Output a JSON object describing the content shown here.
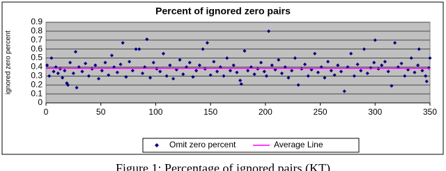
{
  "chart_data": {
    "type": "scatter",
    "title": "Percent of ignored zero pairs",
    "y_label": "ignored zero percent",
    "caption": "Figure 1: Percentage of ignored pairs (KT)",
    "xlim": [
      0,
      350
    ],
    "xticks": [
      0,
      50,
      100,
      150,
      200,
      250,
      300,
      350
    ],
    "ylim": [
      0,
      0.9
    ],
    "yticks": [
      0,
      0.1,
      0.2,
      0.3,
      0.4,
      0.5,
      0.6,
      0.7,
      0.8,
      0.9
    ],
    "grid": true,
    "legend": "bottom",
    "plot_background": "#c0c0c0",
    "series": [
      {
        "name": "Omit zero percent",
        "mode": "markers",
        "color": "#000080",
        "x": [
          1,
          3,
          5,
          7,
          9,
          11,
          13,
          15,
          17,
          19,
          20,
          22,
          25,
          27,
          28,
          30,
          33,
          36,
          39,
          42,
          45,
          48,
          51,
          54,
          57,
          60,
          62,
          65,
          68,
          70,
          73,
          76,
          79,
          82,
          85,
          88,
          90,
          92,
          95,
          98,
          101,
          104,
          107,
          110,
          113,
          116,
          119,
          122,
          125,
          128,
          131,
          134,
          137,
          140,
          143,
          145,
          147,
          150,
          153,
          156,
          159,
          162,
          165,
          168,
          171,
          174,
          177,
          178,
          181,
          184,
          187,
          190,
          193,
          196,
          199,
          201,
          203,
          206,
          209,
          212,
          215,
          218,
          221,
          224,
          227,
          230,
          233,
          236,
          239,
          242,
          245,
          248,
          251,
          254,
          257,
          260,
          263,
          266,
          269,
          272,
          275,
          278,
          281,
          284,
          287,
          290,
          293,
          296,
          299,
          300,
          303,
          306,
          309,
          312,
          315,
          318,
          321,
          324,
          327,
          330,
          333,
          336,
          339,
          340,
          343,
          346,
          347,
          349,
          350
        ],
        "values": [
          0.42,
          0.3,
          0.5,
          0.35,
          0.4,
          0.33,
          0.38,
          0.28,
          0.36,
          0.22,
          0.2,
          0.45,
          0.33,
          0.57,
          0.17,
          0.4,
          0.35,
          0.44,
          0.3,
          0.38,
          0.42,
          0.27,
          0.36,
          0.45,
          0.31,
          0.53,
          0.4,
          0.34,
          0.43,
          0.67,
          0.29,
          0.46,
          0.36,
          0.6,
          0.6,
          0.33,
          0.4,
          0.71,
          0.28,
          0.45,
          0.38,
          0.35,
          0.55,
          0.3,
          0.42,
          0.27,
          0.37,
          0.48,
          0.32,
          0.4,
          0.45,
          0.29,
          0.36,
          0.42,
          0.6,
          0.38,
          0.67,
          0.31,
          0.46,
          0.35,
          0.4,
          0.3,
          0.5,
          0.36,
          0.42,
          0.34,
          0.25,
          0.21,
          0.58,
          0.36,
          0.4,
          0.32,
          0.38,
          0.45,
          0.35,
          0.3,
          0.8,
          0.42,
          0.37,
          0.48,
          0.33,
          0.4,
          0.28,
          0.36,
          0.5,
          0.2,
          0.38,
          0.43,
          0.3,
          0.37,
          0.55,
          0.34,
          0.4,
          0.28,
          0.46,
          0.36,
          0.31,
          0.42,
          0.35,
          0.13,
          0.4,
          0.55,
          0.3,
          0.43,
          0.36,
          0.6,
          0.33,
          0.39,
          0.45,
          0.7,
          0.38,
          0.42,
          0.46,
          0.35,
          0.19,
          0.67,
          0.4,
          0.44,
          0.3,
          0.37,
          0.5,
          0.34,
          0.42,
          0.6,
          0.36,
          0.3,
          0.24,
          0.39,
          0.5
        ]
      },
      {
        "name": "Average Line",
        "mode": "line",
        "color": "#ff00ff",
        "x": [
          0,
          350
        ],
        "values": [
          0.385,
          0.385
        ]
      }
    ]
  }
}
